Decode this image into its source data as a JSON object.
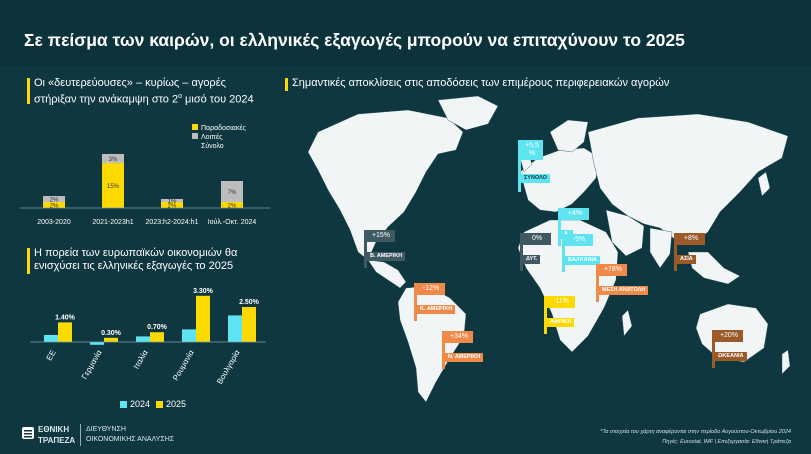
{
  "title": "Σε πείσμα των καιρών, οι ελληνικές εξαγωγές μπορούν να επιταχύνουν το 2025",
  "colors": {
    "yellow": "#fcd900",
    "grey": "#bdbdbd",
    "cyan": "#5ee3f0",
    "orange": "#f08a4b",
    "brown": "#9a5a2a",
    "darkslate": "#3e5961"
  },
  "section1": {
    "line1": "Οι «δευτερεύουσες» – κυρίως – αγορές",
    "line2a": "στήριξαν την ανάκαμψη στο 2",
    "sup": "ο",
    "line2b": " μισό του 2024"
  },
  "section2": {
    "line1": "Η πορεία των ευρωπαϊκών οικονομιών θα",
    "line2": "ενισχύσει τις ελληνικές εξαγωγές το 2025"
  },
  "section3": {
    "text": "Σημαντικές αποκλίσεις στις αποδόσεις των επιμέρους περιφερειακών αγορών"
  },
  "chart_data": [
    {
      "type": "bar",
      "categories": [
        "2003-2020",
        "2021-2023h1",
        "2023:h2-2024:h1",
        "Ιούλ.-Οκτ. 2024"
      ],
      "series": [
        {
          "name": "Παραδοσιακές",
          "values": [
            2,
            15,
            2,
            2
          ],
          "labels": [
            "2%",
            "15%",
            "2%",
            "2%"
          ]
        },
        {
          "name": "Λοιπές",
          "values": [
            2,
            3,
            1,
            7
          ],
          "labels": [
            "2%",
            "3%",
            "1%",
            "7%"
          ]
        }
      ],
      "legend_extra": "Σύνολο",
      "legend_position": "top-right"
    },
    {
      "type": "bar",
      "categories": [
        "ΕΕ",
        "Γερμανία",
        "Ιταλία",
        "Ρουμανία",
        "Βουλγαρία"
      ],
      "series": [
        {
          "name": "2024",
          "values": [
            0.5,
            -0.2,
            0.4,
            0.9,
            1.9
          ]
        },
        {
          "name": "2025",
          "values": [
            1.4,
            0.3,
            0.7,
            3.3,
            2.5
          ],
          "labels": [
            "1.40%",
            "0.30%",
            "0.70%",
            "3.30%",
            "2.50%"
          ]
        }
      ],
      "legend_position": "bottom"
    }
  ],
  "map_markers": [
    {
      "value": "+5,5\n%",
      "label": "ΣΥΝΟΛΟ",
      "color": "#5ee3f0"
    },
    {
      "value": "+4%",
      "label": "Α.",
      "color": "#5ee3f0"
    },
    {
      "value": "0%",
      "label": "ΔΥΤ.",
      "color": "#3e5961"
    },
    {
      "value": "-5%",
      "label": "ΒΑΛΚΑΝΙΑ",
      "color": "#5ee3f0"
    },
    {
      "value": "+15%",
      "label": "Β. ΑΜΕΡΙΚΗ",
      "color": "#3e5961"
    },
    {
      "value": "+8%",
      "label": "ΑΣΙΑ",
      "color": "#9a5a2a"
    },
    {
      "value": "-12%",
      "label": "Κ. ΑΜΕΡΙΚΗ",
      "color": "#f08a4b"
    },
    {
      "value": "+78%",
      "label": "ΜΕΣΗ ΑΝΑΤΟΛΗ",
      "color": "#f08a4b"
    },
    {
      "value": "-11%",
      "label": "ΑΦΡΙΚΗ",
      "color": "#fcd900"
    },
    {
      "value": "+34%",
      "label": "Ν. ΑΜΕΡΙΚΗ",
      "color": "#f08a4b"
    },
    {
      "value": "+20%",
      "label": "ΩΚΕΑΝΙΑ",
      "color": "#9a5a2a"
    }
  ],
  "footer": {
    "bank1": "ΕΘΝΙΚΗ",
    "bank2": "ΤΡΑΠΕΖΑ",
    "dept1": "ΔΙΕΥΘΥΝΣΗ",
    "dept2": "ΟΙΚΟΝΟΜΙΚΗΣ ΑΝΑΛΥΣΗΣ",
    "note1": "*Τα στοιχεία του χάρτη αναφέρονται στην περίοδο Αυγούστου-Οκτωβρίου 2024",
    "note2": "Πηγές: Eurostat, IMF | Επεξεργασία: Εθνική Τράπεζα"
  }
}
